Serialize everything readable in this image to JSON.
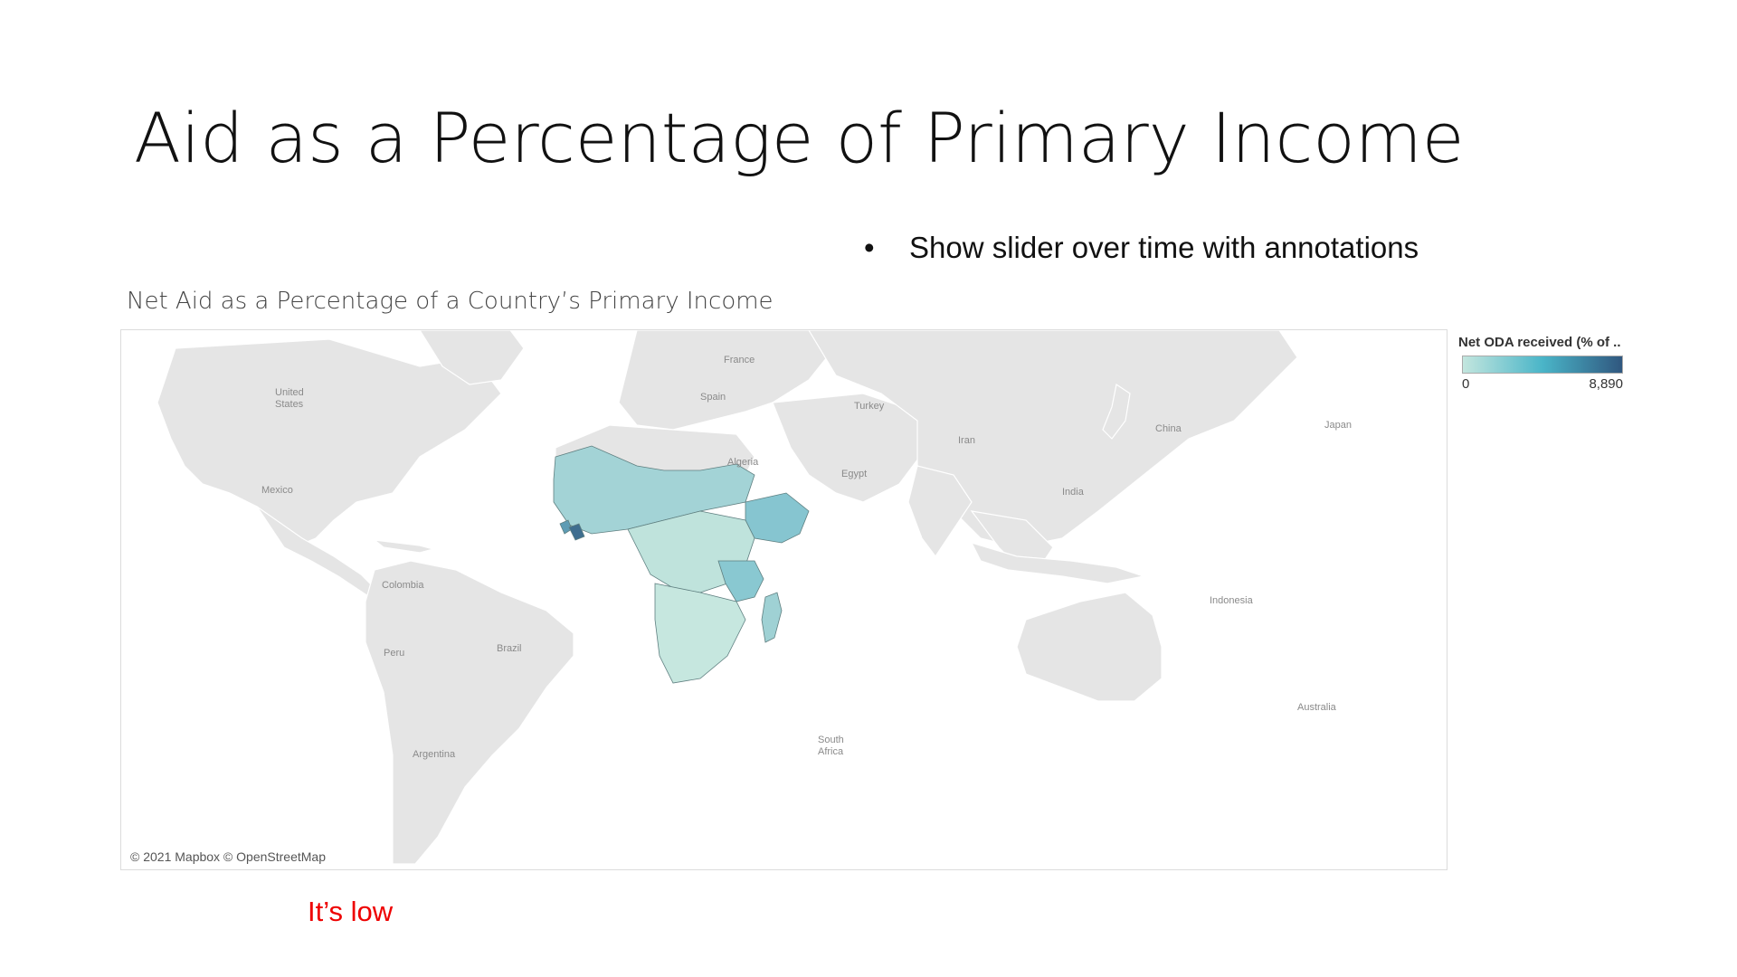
{
  "slide": {
    "title": "Aid as a Percentage of Primary Income",
    "bullet": "Show slider over time with annotations",
    "note": "It’s low"
  },
  "viz": {
    "title": "Net Aid as a Percentage of a Country’s Primary Income",
    "attribution": "© 2021 Mapbox © OpenStreetMap"
  },
  "legend": {
    "title": "Net ODA received (% of ..",
    "min_label": "0",
    "max_label": "8,890",
    "min": 0,
    "max": 8890,
    "color_low": "#c3e6de",
    "color_mid": "#4ab5c8",
    "color_high": "#30577f"
  },
  "map": {
    "land_color": "#e5e5e5",
    "ocean_color": "#ffffff",
    "labels": {
      "us": "United\nStates",
      "mexico": "Mexico",
      "colombia": "Colombia",
      "peru": "Peru",
      "brazil": "Brazil",
      "argentina": "Argentina",
      "france": "France",
      "spain": "Spain",
      "turkey": "Turkey",
      "algeria": "Algeria",
      "egypt": "Egypt",
      "iran": "Iran",
      "india": "India",
      "china": "China",
      "japan": "Japan",
      "indonesia": "Indonesia",
      "australia": "Australia",
      "south_africa": "South\nAfrica"
    },
    "highlight_colors": {
      "west_sahel": "#a3d3d6",
      "liberia": "#3f6e8f",
      "sierra_leone": "#5e9cb4",
      "central": "#bfe3dc",
      "ethiopia": "#86c5d0",
      "tanzania": "#89c8d1",
      "southern": "#c6e7df",
      "madagascar": "#9fd1d4"
    }
  }
}
